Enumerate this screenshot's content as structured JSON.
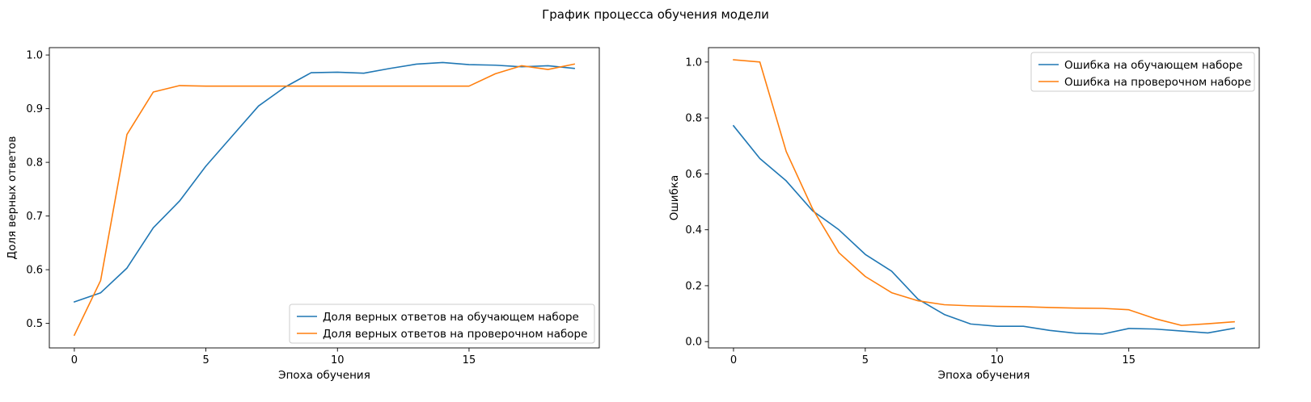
{
  "figure": {
    "title": "График процесса обучения модели"
  },
  "chart_data": [
    {
      "type": "line",
      "title": "",
      "xlabel": "Эпоха обучения",
      "ylabel": "Доля верных ответов",
      "xlim": [
        -0.95,
        19.95
      ],
      "ylim": [
        0.4543,
        1.0137
      ],
      "xticks": [
        0,
        5,
        10,
        15
      ],
      "yticks": [
        0.5,
        0.6,
        0.7,
        0.8,
        0.9,
        1.0
      ],
      "ytick_labels": [
        "0.5",
        "0.6",
        "0.7",
        "0.8",
        "0.9",
        "1.0"
      ],
      "legend_loc": "lower-right",
      "grid": false,
      "x": [
        0,
        1,
        2,
        3,
        4,
        5,
        6,
        7,
        8,
        9,
        10,
        11,
        12,
        13,
        14,
        15,
        16,
        17,
        18,
        19
      ],
      "series": [
        {
          "name": "Доля верных ответов на обучающем наборе",
          "color": "#1f77b4",
          "values": [
            0.54,
            0.557,
            0.603,
            0.678,
            0.728,
            0.793,
            0.849,
            0.905,
            0.94,
            0.967,
            0.968,
            0.966,
            0.975,
            0.983,
            0.986,
            0.982,
            0.981,
            0.978,
            0.98,
            0.975
          ]
        },
        {
          "name": "Доля верных ответов на проверочном наборе",
          "color": "#ff7f0e",
          "values": [
            0.478,
            0.58,
            0.852,
            0.931,
            0.943,
            0.942,
            0.942,
            0.942,
            0.942,
            0.942,
            0.942,
            0.942,
            0.942,
            0.942,
            0.942,
            0.942,
            0.965,
            0.98,
            0.973,
            0.983
          ]
        }
      ]
    },
    {
      "type": "line",
      "title": "",
      "xlabel": "Эпоха обучения",
      "ylabel": "Ошибка",
      "xlim": [
        -0.95,
        19.95
      ],
      "ylim": [
        -0.0225,
        1.0515
      ],
      "xticks": [
        0,
        5,
        10,
        15
      ],
      "yticks": [
        0.0,
        0.2,
        0.4,
        0.6,
        0.8,
        1.0
      ],
      "ytick_labels": [
        "0.0",
        "0.2",
        "0.4",
        "0.6",
        "0.8",
        "1.0"
      ],
      "legend_loc": "upper-right",
      "grid": false,
      "x": [
        0,
        1,
        2,
        3,
        4,
        5,
        6,
        7,
        8,
        9,
        10,
        11,
        12,
        13,
        14,
        15,
        16,
        17,
        18,
        19
      ],
      "series": [
        {
          "name": "Ошибка на обучающем наборе",
          "color": "#1f77b4",
          "values": [
            0.772,
            0.655,
            0.575,
            0.468,
            0.4,
            0.312,
            0.252,
            0.152,
            0.097,
            0.063,
            0.055,
            0.055,
            0.04,
            0.03,
            0.027,
            0.047,
            0.045,
            0.038,
            0.031,
            0.048
          ]
        },
        {
          "name": "Ошибка на проверочном наборе",
          "color": "#ff7f0e",
          "values": [
            1.008,
            1.0,
            0.68,
            0.475,
            0.318,
            0.233,
            0.175,
            0.146,
            0.132,
            0.128,
            0.126,
            0.125,
            0.122,
            0.12,
            0.119,
            0.114,
            0.082,
            0.058,
            0.064,
            0.071
          ]
        }
      ]
    }
  ]
}
